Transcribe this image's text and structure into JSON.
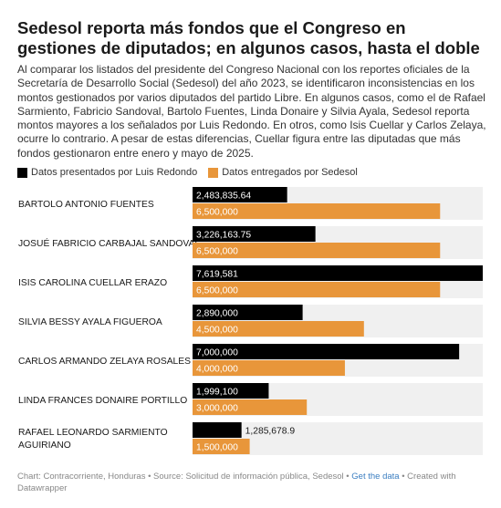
{
  "title": "Sedesol reporta más fondos que el Congreso en gestiones de diputados; en algunos casos, hasta el doble",
  "subtitle": "Al comparar los listados del presidente del Congreso Nacional con los reportes oficiales de la Secretaría de Desarrollo Social (Sedesol) del año 2023, se identificaron inconsistencias en los montos gestionados por varios diputados del partido Libre. En algunos casos, como el de Rafael Sarmiento, Fabricio Sandoval, Bartolo Fuentes, Linda Donaire y Silvia Ayala, Sedesol reporta montos mayores a los señalados por Luis Redondo. En otros, como Isis Cuellar y Carlos Zelaya, ocurre lo contrario. A pesar de estas diferencias, Cuellar figura entre las diputadas que más fondos gestionaron entre enero y mayo de 2025.",
  "colors": {
    "redondo": "#000000",
    "sedesol": "#e8963a",
    "row_background": "#f0f0f0"
  },
  "chart_data": {
    "type": "bar",
    "orientation": "horizontal",
    "xlim": [
      0,
      7619581
    ],
    "categories": [
      "BARTOLO ANTONIO FUENTES",
      "JOSUÉ FABRICIO CARBAJAL SANDOVAL",
      "ISIS CAROLINA CUELLAR ERAZO",
      "SILVIA BESSY AYALA FIGUEROA",
      "CARLOS ARMANDO ZELAYA ROSALES",
      "LINDA FRANCES DONAIRE PORTILLO",
      "RAFAEL LEONARDO SARMIENTO AGUIRIANO"
    ],
    "series": [
      {
        "name": "Datos presentados por Luis Redondo",
        "values": [
          2483835.64,
          3226163.75,
          7619581,
          2890000,
          7000000,
          1999100,
          1285678.9
        ],
        "labels": [
          "2,483,835.64",
          "3,226,163.75",
          "7,619,581",
          "2,890,000",
          "7,000,000",
          "1,999,100",
          "1,285,678.9"
        ]
      },
      {
        "name": "Datos entregados por Sedesol",
        "values": [
          6500000,
          6500000,
          6500000,
          4500000,
          4000000,
          3000000,
          1500000
        ],
        "labels": [
          "6,500,000",
          "6,500,000",
          "6,500,000",
          "4,500,000",
          "4,000,000",
          "3,000,000",
          "1,500,000"
        ]
      }
    ],
    "legend": "top-left",
    "grid": false
  },
  "footer": {
    "text": "Chart: Contracorriente, Honduras • Source: Solicitud de información pública, Sedesol • ",
    "link": "Get the data",
    "suffix": " • Created with Datawrapper"
  }
}
